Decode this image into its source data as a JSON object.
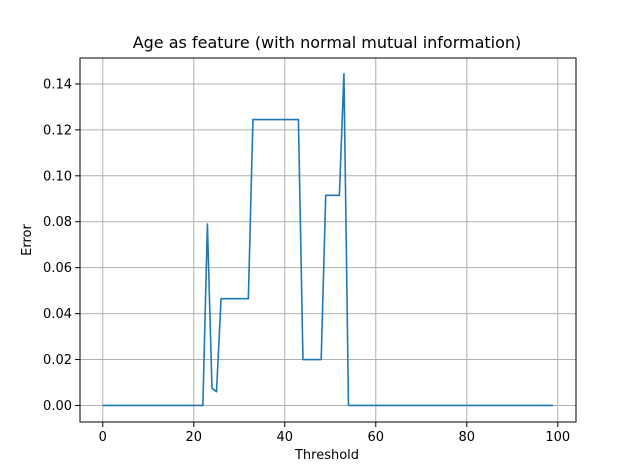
{
  "chart_data": {
    "type": "line",
    "title": "Age as feature (with normal mutual information)",
    "xlabel": "Threshold",
    "ylabel": "Error",
    "xlim": [
      -5,
      104
    ],
    "ylim": [
      -0.0072,
      0.1513
    ],
    "xticks": [
      0,
      20,
      40,
      60,
      80,
      100
    ],
    "xtick_labels": [
      "0",
      "20",
      "40",
      "60",
      "80",
      "100"
    ],
    "yticks": [
      0.0,
      0.02,
      0.04,
      0.06,
      0.08,
      0.1,
      0.12,
      0.14
    ],
    "ytick_labels": [
      "0.00",
      "0.02",
      "0.04",
      "0.06",
      "0.08",
      "0.10",
      "0.12",
      "0.14"
    ],
    "grid": true,
    "line_color": "#1f77b4",
    "series": [
      {
        "x": [
          0,
          22,
          23,
          24,
          25,
          26,
          32,
          33,
          43,
          44,
          48,
          49,
          52,
          53,
          54,
          99
        ],
        "values": [
          0.0,
          0.0,
          0.079,
          0.0075,
          0.006,
          0.0465,
          0.0465,
          0.1245,
          0.1245,
          0.02,
          0.02,
          0.0915,
          0.0915,
          0.1445,
          0.0,
          0.0
        ]
      }
    ]
  }
}
